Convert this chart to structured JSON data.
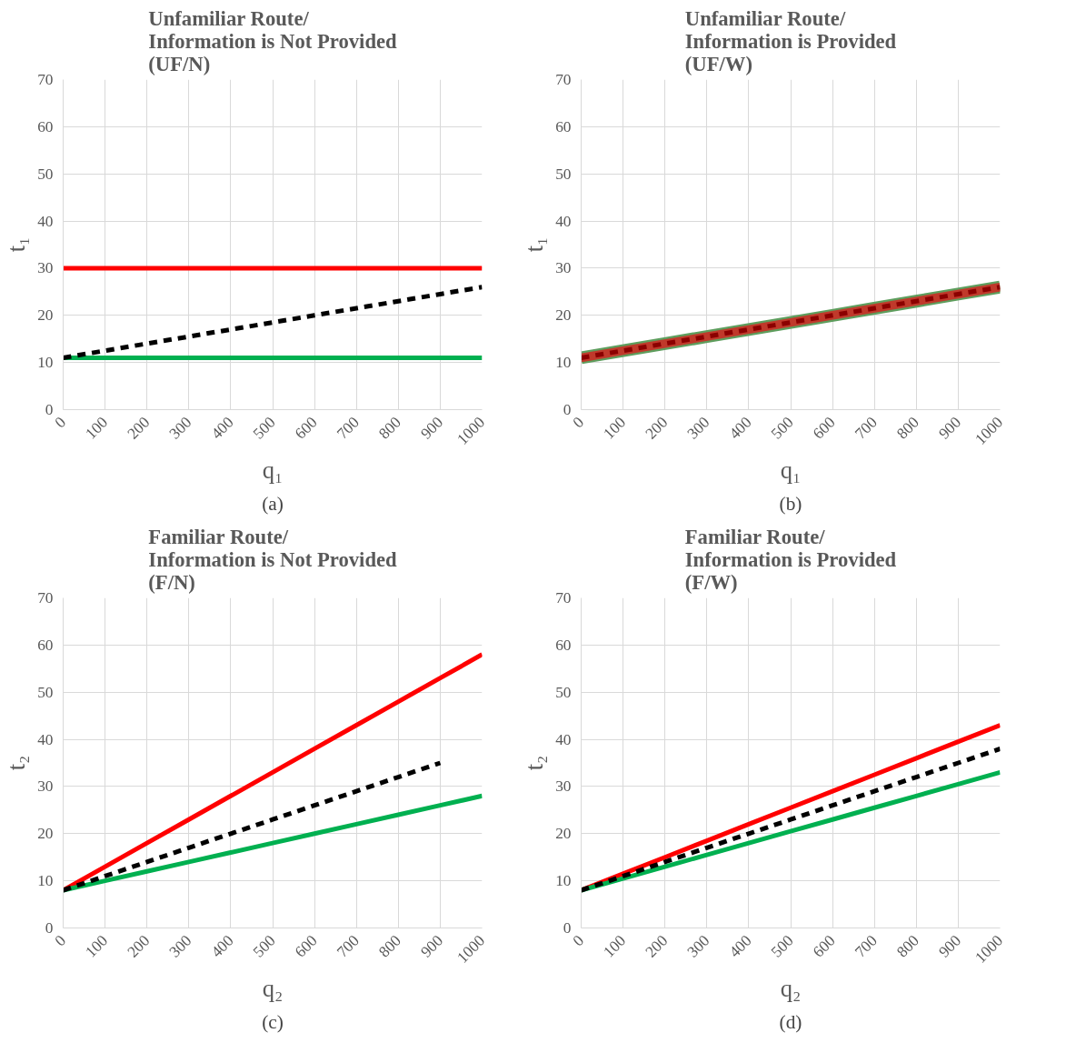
{
  "chart_data": [
    {
      "type": "line",
      "title": "Unfamiliar Route/\nInformation is Not Provided\n(UF/N)",
      "xlabel": "q₁",
      "ylabel": "t₁",
      "categories": [
        "0",
        "100",
        "200",
        "300",
        "400",
        "500",
        "600",
        "700",
        "800",
        "900",
        "1000"
      ],
      "ylim": [
        0,
        70
      ],
      "yticks": [
        0,
        10,
        20,
        30,
        40,
        50,
        60,
        70
      ],
      "grid": true,
      "annotations": [
        "(a)"
      ],
      "series": [
        {
          "color": "#ff0000",
          "values": [
            30,
            30,
            30,
            30,
            30,
            30,
            30,
            30,
            30,
            30,
            30
          ]
        },
        {
          "color": "#00b050",
          "values": [
            11,
            11,
            11,
            11,
            11,
            11,
            11,
            11,
            11,
            11,
            11
          ]
        },
        {
          "color": "#000000",
          "line_style": "dashed",
          "values": [
            11,
            12.5,
            14,
            15.5,
            17,
            18.5,
            20,
            21.5,
            23,
            24.5,
            26
          ]
        }
      ]
    },
    {
      "type": "line",
      "title": "Unfamiliar Route/\nInformation is Provided\n(UF/W)",
      "xlabel": "q₁",
      "ylabel": "t₁",
      "categories": [
        "0",
        "100",
        "200",
        "300",
        "400",
        "500",
        "600",
        "700",
        "800",
        "900",
        "1000"
      ],
      "ylim": [
        0,
        70
      ],
      "yticks": [
        0,
        10,
        20,
        30,
        40,
        50,
        60,
        70
      ],
      "grid": true,
      "annotations": [
        "(b)"
      ],
      "series": [
        {
          "color": "#5e9e5e",
          "values": [
            11,
            12.5,
            14,
            15.5,
            17,
            18.5,
            20,
            21.5,
            23,
            24.5,
            26
          ]
        },
        {
          "color": "#c0392b",
          "values": [
            11,
            12.5,
            14,
            15.5,
            17,
            18.5,
            20,
            21.5,
            23,
            24.5,
            26
          ]
        },
        {
          "color": "#8b0000",
          "line_style": "dashed",
          "values": [
            11,
            12.5,
            14,
            15.5,
            17,
            18.5,
            20,
            21.5,
            23,
            24.5,
            26
          ]
        }
      ]
    },
    {
      "type": "line",
      "title": "Familiar Route/\nInformation is Not Provided\n(F/N)",
      "xlabel": "q₂",
      "ylabel": "t₂",
      "categories": [
        "0",
        "100",
        "200",
        "300",
        "400",
        "500",
        "600",
        "700",
        "800",
        "900",
        "1000"
      ],
      "ylim": [
        0,
        70
      ],
      "yticks": [
        0,
        10,
        20,
        30,
        40,
        50,
        60,
        70
      ],
      "grid": true,
      "annotations": [
        "(c)"
      ],
      "series": [
        {
          "color": "#ff0000",
          "values": [
            8,
            13,
            18,
            23,
            28,
            33,
            38,
            43,
            48,
            53,
            58
          ]
        },
        {
          "color": "#00b050",
          "values": [
            8,
            10,
            12,
            14,
            16,
            18,
            20,
            22,
            24,
            26,
            28
          ]
        },
        {
          "color": "#000000",
          "line_style": "dashed",
          "values": [
            8,
            11,
            14,
            17,
            20,
            23,
            26,
            29,
            32,
            35,
            null
          ]
        }
      ]
    },
    {
      "type": "line",
      "title": "Familiar Route/\nInformation is Provided\n(F/W)",
      "xlabel": "q₂",
      "ylabel": "t₂",
      "categories": [
        "0",
        "100",
        "200",
        "300",
        "400",
        "500",
        "600",
        "700",
        "800",
        "900",
        "1000"
      ],
      "ylim": [
        0,
        70
      ],
      "yticks": [
        0,
        10,
        20,
        30,
        40,
        50,
        60,
        70
      ],
      "grid": true,
      "annotations": [
        "(d)"
      ],
      "series": [
        {
          "color": "#ff0000",
          "values": [
            8,
            11.5,
            15,
            18.5,
            22,
            25.5,
            29,
            32.5,
            36,
            39.5,
            43
          ]
        },
        {
          "color": "#00b050",
          "values": [
            8,
            10.5,
            13,
            15.5,
            18,
            20.5,
            23,
            25.5,
            28,
            30.5,
            33
          ]
        },
        {
          "color": "#000000",
          "line_style": "dashed",
          "values": [
            8,
            11,
            14,
            17,
            20,
            23,
            26,
            29,
            32,
            35,
            38
          ]
        }
      ]
    }
  ]
}
